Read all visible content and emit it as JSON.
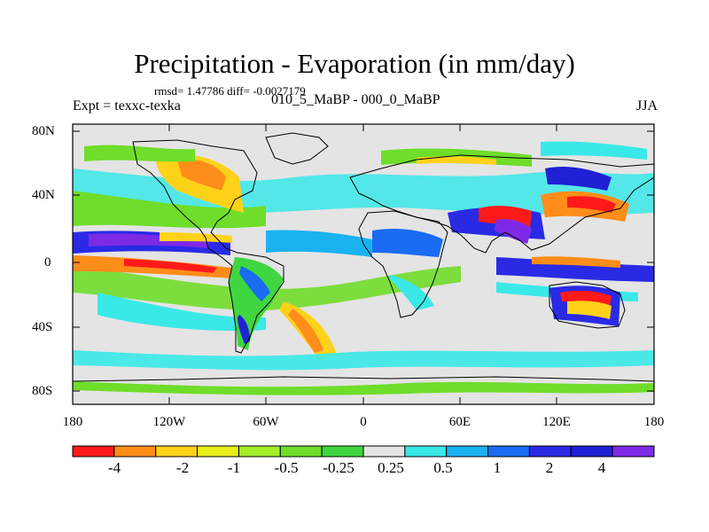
{
  "header": {
    "title": "Precipitation - Evaporation (in mm/day)",
    "stats": "rmsd= 1.47786 diff= -0.0027179",
    "experiment": "Expt = texxc-texka",
    "period": "010_5_MaBP - 000_0_MaBP",
    "season": "JJA"
  },
  "axes": {
    "y_ticks": [
      "80N",
      "40N",
      "0",
      "40S",
      "80S"
    ],
    "x_ticks": [
      "180",
      "120W",
      "60W",
      "0",
      "60E",
      "120E",
      "180"
    ]
  },
  "colorbar": {
    "colors": [
      "#ff1a1a",
      "#ff8d1a",
      "#ffd21a",
      "#e9ef1a",
      "#a2ef2a",
      "#6fdd2a",
      "#3fd63f",
      "#e4e4e4",
      "#3ae8e8",
      "#1ab2f0",
      "#1a6cf2",
      "#2a2ae5",
      "#2020d4",
      "#7d2ae6"
    ],
    "labels": [
      "-4",
      "-2",
      "-1",
      "-0.5",
      "-0.25",
      "0.25",
      "0.5",
      "1",
      "2",
      "4"
    ]
  }
}
